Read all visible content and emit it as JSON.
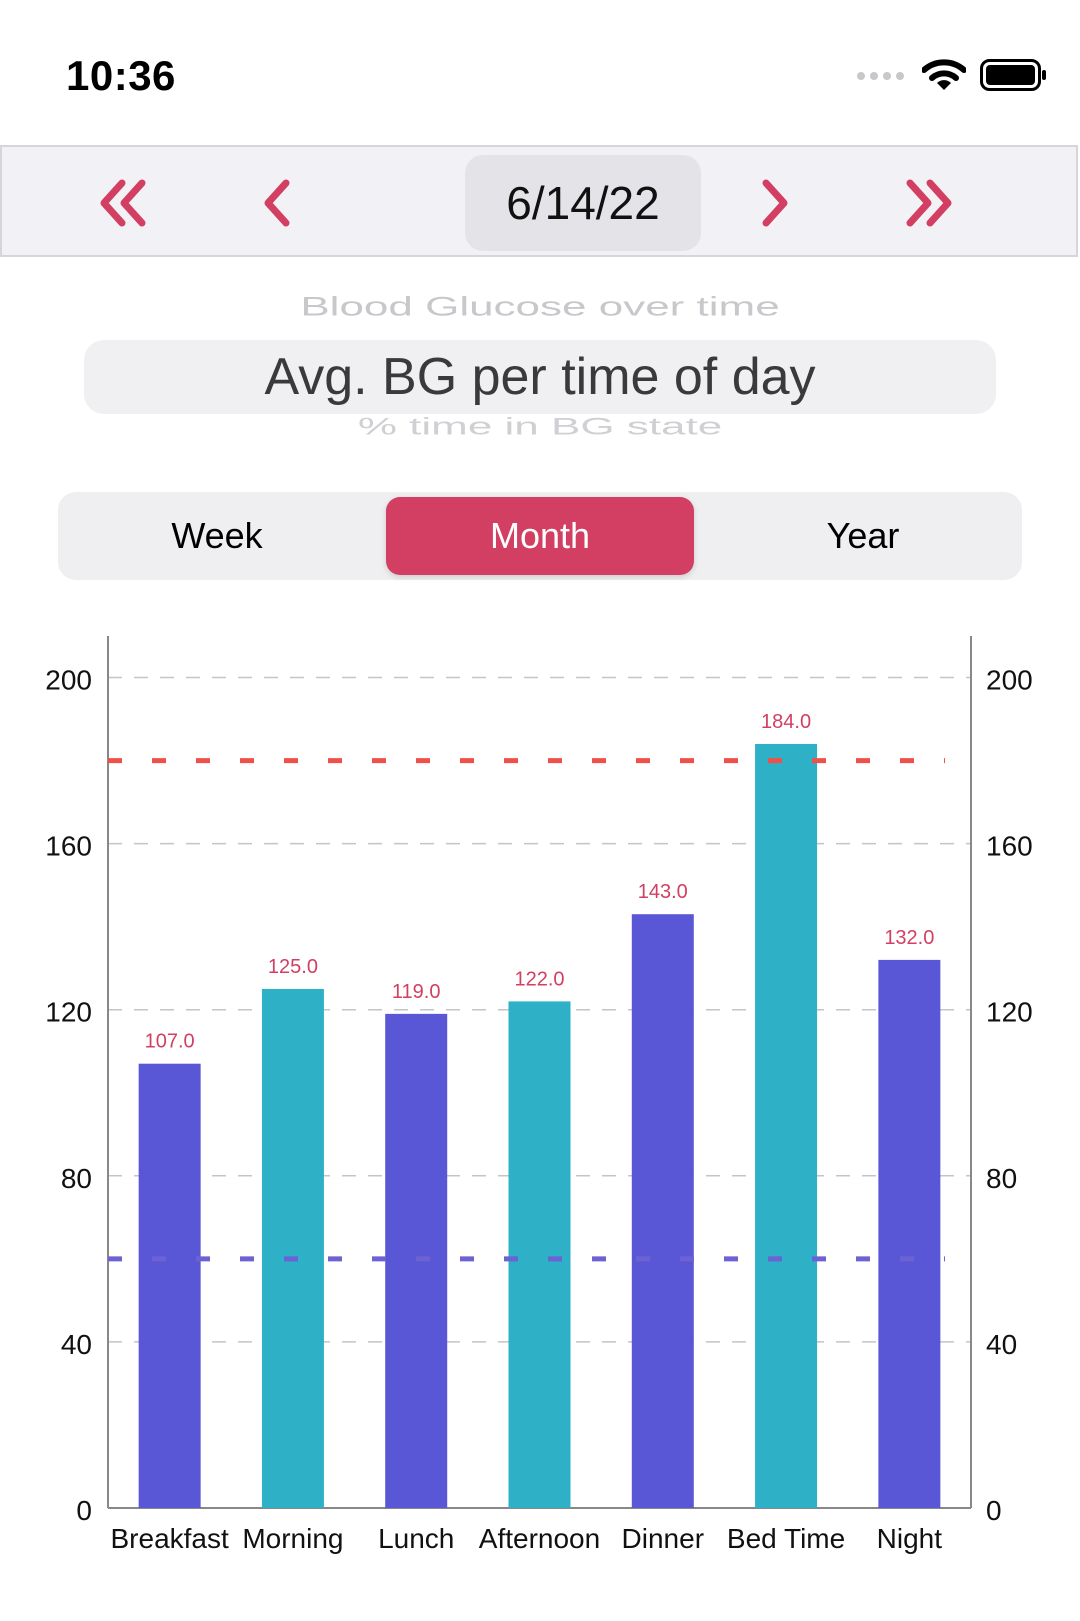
{
  "status": {
    "time": "10:36",
    "icons": [
      "signal-dots-icon",
      "wifi-icon",
      "battery-icon"
    ]
  },
  "nav": {
    "date": "6/14/22",
    "icons": [
      "double-chevron-left-icon",
      "chevron-left-icon",
      "chevron-right-icon",
      "double-chevron-right-icon"
    ],
    "accent": "#d23f62"
  },
  "picker": {
    "selected": "Avg. BG per time of day",
    "above": "Blood Glucose over time",
    "below": "% time in BG state"
  },
  "segments": [
    {
      "label": "Week",
      "active": false
    },
    {
      "label": "Month",
      "active": true
    },
    {
      "label": "Year",
      "active": false
    }
  ],
  "chart_data": {
    "type": "bar",
    "categories": [
      "Breakfast",
      "Morning",
      "Lunch",
      "Afternoon",
      "Dinner",
      "Bed Time",
      "Night"
    ],
    "values": [
      107.0,
      125.0,
      119.0,
      122.0,
      143.0,
      184.0,
      132.0
    ],
    "value_labels": [
      "107.0",
      "125.0",
      "119.0",
      "122.0",
      "143.0",
      "184.0",
      "132.0"
    ],
    "colors": [
      "#5a57d6",
      "#2eb0c6",
      "#5a57d6",
      "#2eb0c6",
      "#5a57d6",
      "#2eb0c6",
      "#5a57d6"
    ],
    "ylim": [
      0,
      210
    ],
    "yticks": [
      0,
      40,
      80,
      120,
      160,
      200
    ],
    "yaxis_right": true,
    "grid": true,
    "reference_lines": [
      {
        "value": 180,
        "color": "#f0504a"
      },
      {
        "value": 60,
        "color": "#6c62d4"
      }
    ],
    "label_color": "#d23f62",
    "title": "",
    "xlabel": "",
    "ylabel": ""
  }
}
